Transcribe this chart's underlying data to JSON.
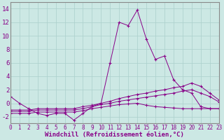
{
  "background_color": "#cce8e4",
  "grid_color": "#aacfcb",
  "line_color": "#880088",
  "xlabel": "Windchill (Refroidissement éolien,°C)",
  "xlabel_fontsize": 6.5,
  "tick_fontsize": 5.5,
  "ytick_fontsize": 6.5,
  "ylim": [
    -3,
    15
  ],
  "xlim": [
    0,
    23
  ],
  "yticks": [
    -2,
    0,
    2,
    4,
    6,
    8,
    10,
    12,
    14
  ],
  "xticks": [
    0,
    1,
    2,
    3,
    4,
    5,
    6,
    7,
    8,
    9,
    10,
    11,
    12,
    13,
    14,
    15,
    16,
    17,
    18,
    19,
    20,
    21,
    22,
    23
  ],
  "series": [
    {
      "x": [
        0,
        1,
        2,
        3,
        4,
        5,
        6,
        7,
        8,
        9,
        10,
        11,
        12,
        13,
        14,
        15,
        16,
        17,
        18,
        19,
        20,
        21,
        22,
        23
      ],
      "y": [
        1.0,
        0.0,
        -0.8,
        -1.5,
        -1.8,
        -1.5,
        -1.5,
        -2.5,
        -1.5,
        -0.5,
        0.0,
        6.0,
        12.0,
        11.5,
        13.8,
        9.5,
        6.5,
        7.0,
        3.5,
        2.0,
        1.5,
        -0.5,
        -0.8,
        -0.8
      ]
    },
    {
      "x": [
        0,
        1,
        2,
        3,
        4,
        5,
        6,
        7,
        8,
        9,
        10,
        11,
        12,
        13,
        14,
        15,
        16,
        17,
        18,
        19,
        20,
        21,
        22,
        23
      ],
      "y": [
        -1.0,
        -1.0,
        -1.0,
        -0.8,
        -0.8,
        -0.8,
        -0.8,
        -0.8,
        -0.5,
        -0.3,
        0.0,
        0.3,
        0.7,
        1.0,
        1.3,
        1.5,
        1.8,
        2.0,
        2.3,
        2.5,
        3.0,
        2.5,
        1.5,
        0.5
      ]
    },
    {
      "x": [
        0,
        1,
        2,
        3,
        4,
        5,
        6,
        7,
        8,
        9,
        10,
        11,
        12,
        13,
        14,
        15,
        16,
        17,
        18,
        19,
        20,
        21,
        22,
        23
      ],
      "y": [
        -1.2,
        -1.2,
        -1.2,
        -1.0,
        -1.0,
        -1.0,
        -1.0,
        -1.0,
        -0.8,
        -0.5,
        -0.2,
        0.0,
        0.3,
        0.5,
        0.7,
        0.9,
        1.1,
        1.3,
        1.5,
        1.8,
        2.0,
        1.5,
        1.0,
        0.2
      ]
    },
    {
      "x": [
        0,
        1,
        2,
        3,
        4,
        5,
        6,
        7,
        8,
        9,
        10,
        11,
        12,
        13,
        14,
        15,
        16,
        17,
        18,
        19,
        20,
        21,
        22,
        23
      ],
      "y": [
        -1.5,
        -1.5,
        -1.5,
        -1.3,
        -1.3,
        -1.3,
        -1.3,
        -1.3,
        -1.1,
        -0.8,
        -0.6,
        -0.4,
        -0.2,
        -0.1,
        0.0,
        -0.3,
        -0.5,
        -0.6,
        -0.7,
        -0.8,
        -0.8,
        -0.8,
        -0.8,
        -0.8
      ]
    }
  ]
}
